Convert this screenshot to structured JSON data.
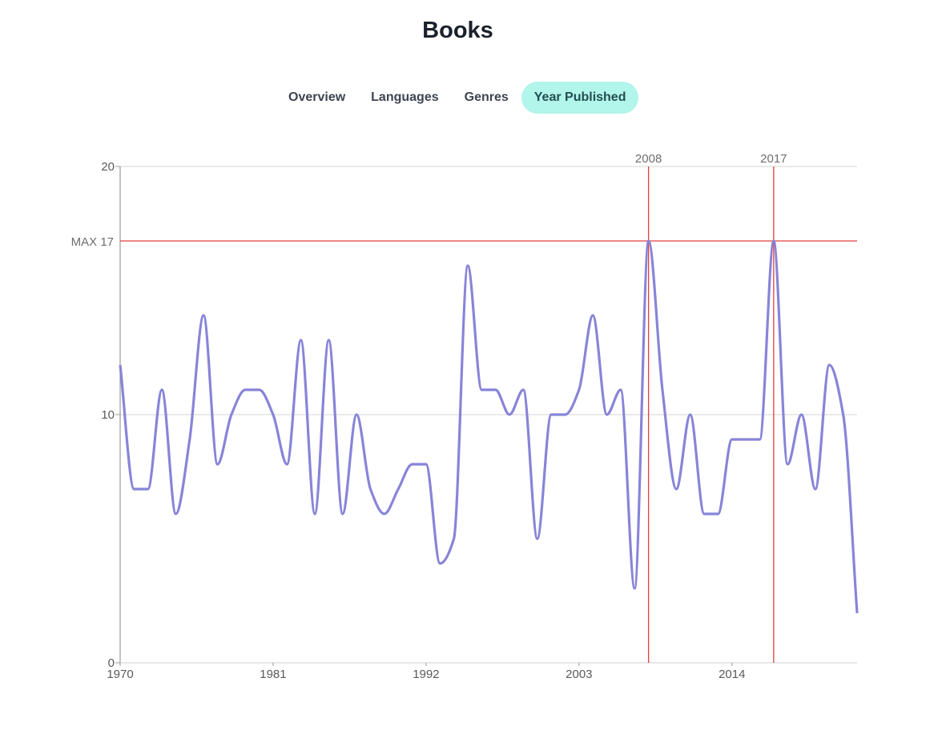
{
  "page": {
    "title": "Books"
  },
  "tabs": [
    {
      "label": "Overview",
      "active": false
    },
    {
      "label": "Languages",
      "active": false
    },
    {
      "label": "Genres",
      "active": false
    },
    {
      "label": "Year Published",
      "active": true
    }
  ],
  "colors": {
    "line": "#8884d8",
    "marker": "#e53e3e",
    "grid": "#dddddd",
    "axis": "#999999",
    "active_tab_bg": "#b2f5ea"
  },
  "chart_data": {
    "type": "line",
    "title": "",
    "xlabel": "",
    "ylabel": "",
    "xlim": [
      1970,
      2023
    ],
    "ylim": [
      0,
      20
    ],
    "x_ticks": [
      "1970",
      "1981",
      "1992",
      "2003",
      "2014"
    ],
    "y_ticks": [
      "0",
      "10",
      "20"
    ],
    "max_label": "MAX 17",
    "max_value": 17,
    "max_years": [
      "2008",
      "2017"
    ],
    "grid": true,
    "legend": "none",
    "x": [
      1970,
      1971,
      1972,
      1973,
      1974,
      1975,
      1976,
      1977,
      1978,
      1979,
      1980,
      1981,
      1982,
      1983,
      1984,
      1985,
      1986,
      1987,
      1988,
      1989,
      1990,
      1991,
      1992,
      1993,
      1994,
      1995,
      1996,
      1997,
      1998,
      1999,
      2000,
      2001,
      2002,
      2003,
      2004,
      2005,
      2006,
      2007,
      2008,
      2009,
      2010,
      2011,
      2012,
      2013,
      2014,
      2015,
      2016,
      2017,
      2018,
      2019,
      2020,
      2021,
      2022,
      2023
    ],
    "series": [
      {
        "values": [
          12,
          7,
          7,
          11,
          6,
          9,
          14,
          8,
          10,
          11,
          11,
          10,
          8,
          13,
          6,
          13,
          6,
          10,
          7,
          6,
          7,
          8,
          8,
          4,
          5,
          16,
          11,
          11,
          10,
          11,
          5,
          10,
          10,
          11,
          14,
          10,
          11,
          3,
          17,
          11,
          7,
          10,
          6,
          6,
          9,
          9,
          9,
          17,
          8,
          10,
          7,
          12,
          10,
          2
        ]
      }
    ]
  }
}
